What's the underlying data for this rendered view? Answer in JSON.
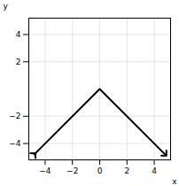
{
  "chart_data": {
    "type": "line",
    "x": [
      -4.8,
      0,
      4.8
    ],
    "values": [
      -4.8,
      0,
      -4.8
    ],
    "color": "#000000",
    "marker": "arrow",
    "xlabel": "x",
    "ylabel": "y",
    "xlim": [
      -5.2,
      5.2
    ],
    "ylim": [
      -5.2,
      5.2
    ],
    "xticks": [
      -4,
      -2,
      0,
      2,
      4
    ],
    "yticks": [
      -4,
      -2,
      2,
      4
    ],
    "grid": true
  }
}
